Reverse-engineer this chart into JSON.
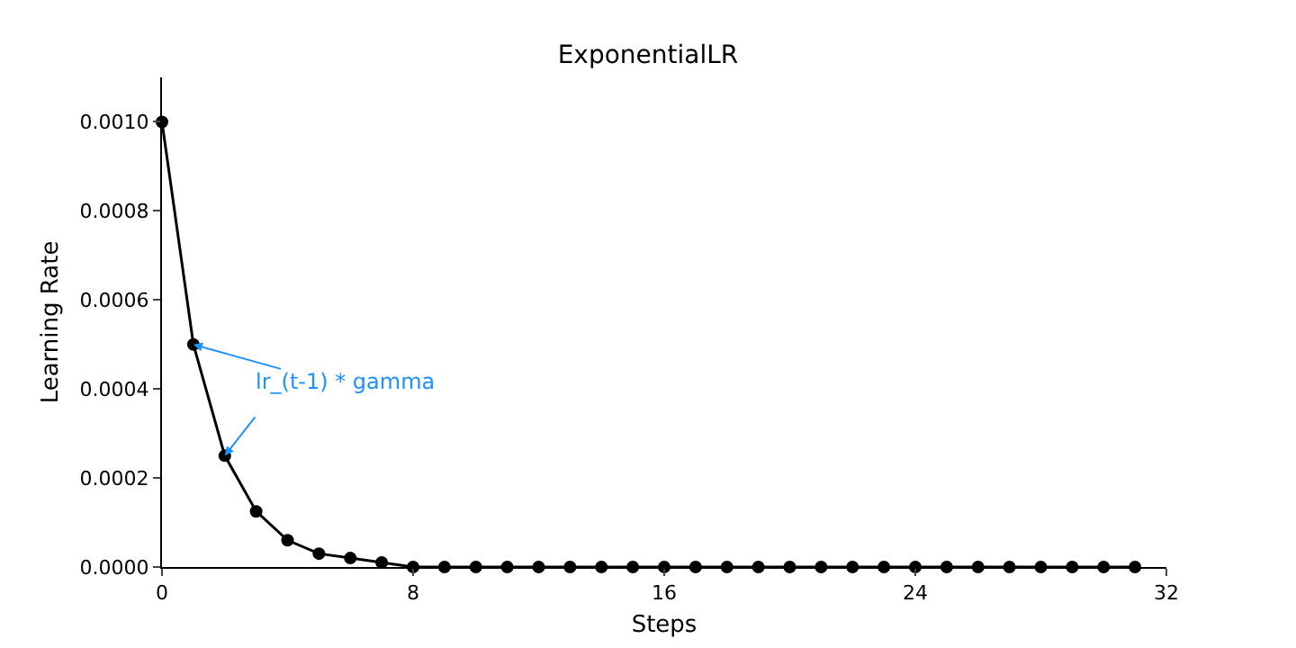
{
  "chart_data": {
    "type": "line",
    "title": "ExponentialLR",
    "xlabel": "Steps",
    "ylabel": "Learning Rate",
    "x": [
      0,
      1,
      2,
      3,
      4,
      5,
      6,
      7,
      8,
      9,
      10,
      11,
      12,
      13,
      14,
      15,
      16,
      17,
      18,
      19,
      20,
      21,
      22,
      23,
      24,
      25,
      26,
      27,
      28,
      29,
      30,
      31
    ],
    "series": [
      {
        "color": "#000000",
        "values": [
          0.001,
          0.0005,
          0.00025,
          0.000125,
          6e-05,
          3e-05,
          2e-05,
          1e-05,
          0,
          0,
          0,
          0,
          0,
          0,
          0,
          0,
          0,
          0,
          0,
          0,
          0,
          0,
          0,
          0,
          0,
          0,
          0,
          0,
          0,
          0,
          0,
          0
        ]
      }
    ],
    "annotations": [
      {
        "text": "lr_(t-1) * gamma",
        "x": 1,
        "y": 0.0005
      }
    ],
    "xlim": [
      0,
      32
    ],
    "xticks": [
      0,
      8,
      16,
      24,
      32
    ],
    "ylim": [
      0,
      0.0011
    ],
    "yticks": [
      {
        "value": 0,
        "label": "0.0000"
      },
      {
        "value": 0.0002,
        "label": "0.0002"
      },
      {
        "value": 0.0004,
        "label": "0.0004"
      },
      {
        "value": 0.0006,
        "label": "0.0006"
      },
      {
        "value": 0.0008,
        "label": "0.0008"
      },
      {
        "value": 0.001,
        "label": "0.0010"
      }
    ],
    "grid": false,
    "legend": false,
    "marker": "circle",
    "line_style": "solid"
  }
}
